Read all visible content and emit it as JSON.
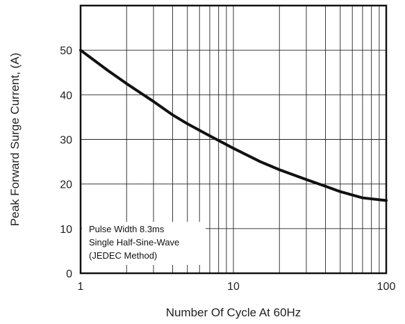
{
  "chart_data": {
    "type": "line",
    "xlabel": "Number Of Cycle At 60Hz",
    "ylabel": "Peak Forward Surge Current, (A)",
    "xscale": "log",
    "xlim": [
      1,
      100
    ],
    "ylim": [
      0,
      60
    ],
    "x_ticks": [
      1,
      10,
      100
    ],
    "x_tick_labels": [
      "1",
      "10",
      "100"
    ],
    "y_ticks": [
      0,
      10,
      20,
      30,
      40,
      50
    ],
    "y_tick_labels": [
      "0",
      "10",
      "20",
      "30",
      "40",
      "50"
    ],
    "grid": true,
    "annotation": [
      "Pulse Width 8.3ms",
      "Single Half-Sine-Wave",
      "(JEDEC Method)"
    ],
    "series": [
      {
        "color": "#111111",
        "x": [
          1,
          1.5,
          2,
          3,
          4,
          5,
          7,
          10,
          15,
          20,
          30,
          40,
          50,
          70,
          100
        ],
        "y": [
          50,
          45.5,
          42.5,
          38.5,
          35.5,
          33.5,
          30.8,
          28,
          25,
          23.2,
          21,
          19.5,
          18.3,
          16.9,
          16.3
        ]
      }
    ]
  }
}
